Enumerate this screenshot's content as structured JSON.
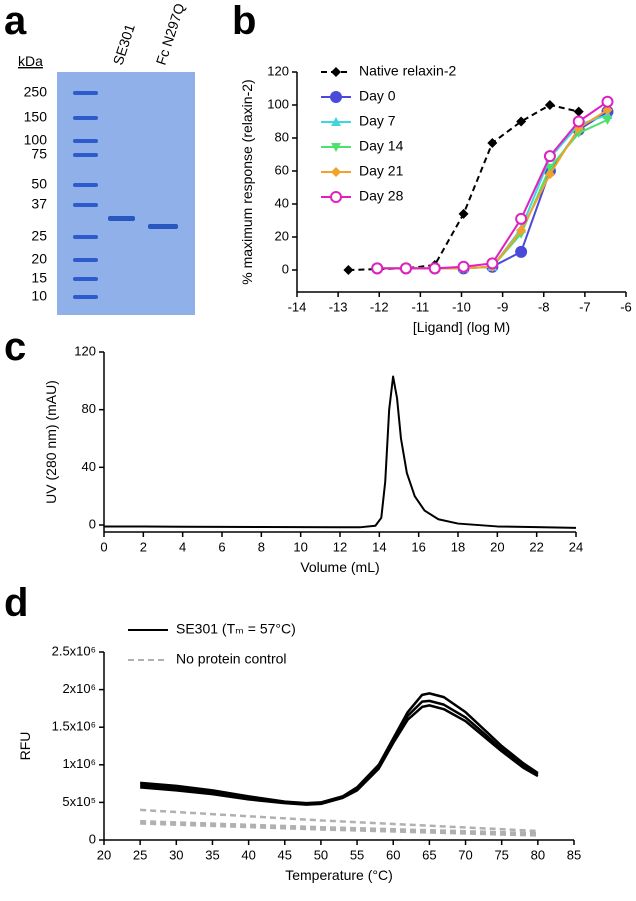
{
  "gel": {
    "panel_label": "a",
    "unit_label": "kDa",
    "ladder": [
      250,
      150,
      100,
      75,
      50,
      37,
      25,
      20,
      15,
      10
    ],
    "lanes": [
      "SE301",
      "Fc N297Q"
    ]
  },
  "chart_data": [
    {
      "panel_label": "b",
      "type": "line",
      "x_label": "[Ligand] (log M)",
      "y_label": "% maximum response (relaxin-2)",
      "xlim": [
        -14,
        -6
      ],
      "xticks": [
        -14,
        -13,
        -12,
        -11,
        -10,
        -9,
        -8,
        -7,
        -6
      ],
      "ylim": [
        0,
        120
      ],
      "yticks": [
        0,
        20,
        40,
        60,
        80,
        100,
        120
      ],
      "legend": "upper left",
      "series": [
        {
          "name": "Native relaxin-2",
          "color": "#000000",
          "marker": "diamond",
          "dash": true,
          "x": [
            -12.75,
            -11.35,
            -10.65,
            -9.95,
            -9.25,
            -8.55,
            -7.85,
            -7.15
          ],
          "values": [
            0,
            1,
            3,
            34,
            77,
            90,
            100,
            96
          ]
        },
        {
          "name": "Day 0",
          "color": "#4a4ad8",
          "marker": "circle",
          "dash": false,
          "x": [
            -12.05,
            -11.35,
            -10.65,
            -9.95,
            -9.25,
            -8.55,
            -7.85,
            -7.15,
            -6.45
          ],
          "values": [
            1,
            1,
            1,
            1,
            2,
            11,
            60,
            85,
            96
          ]
        },
        {
          "name": "Day 7",
          "color": "#3fd6e0",
          "marker": "triangle-up",
          "dash": false,
          "x": [
            -12.05,
            -11.35,
            -10.65,
            -9.95,
            -9.25,
            -8.55,
            -7.85,
            -7.15,
            -6.45
          ],
          "values": [
            1,
            1,
            1,
            1,
            2,
            25,
            68,
            88,
            94
          ]
        },
        {
          "name": "Day 14",
          "color": "#4ee06a",
          "marker": "triangle-down",
          "dash": false,
          "x": [
            -12.05,
            -11.35,
            -10.65,
            -9.95,
            -9.25,
            -8.55,
            -7.85,
            -7.15,
            -6.45
          ],
          "values": [
            1,
            1,
            1,
            1,
            2,
            22,
            62,
            83,
            91
          ]
        },
        {
          "name": "Day 21",
          "color": "#f2a22a",
          "marker": "diamond",
          "dash": false,
          "x": [
            -12.05,
            -11.35,
            -10.65,
            -9.95,
            -9.25,
            -8.55,
            -7.85,
            -7.15,
            -6.45
          ],
          "values": [
            1,
            1,
            1,
            1,
            2,
            24,
            58,
            86,
            97
          ]
        },
        {
          "name": "Day 28",
          "color": "#e020c0",
          "marker": "open-circle",
          "dash": false,
          "x": [
            -12.05,
            -11.35,
            -10.65,
            -9.95,
            -9.25,
            -8.55,
            -7.85,
            -7.15,
            -6.45
          ],
          "values": [
            1,
            1,
            1,
            2,
            4,
            31,
            69,
            90,
            102
          ]
        }
      ]
    },
    {
      "panel_label": "c",
      "type": "line",
      "x_label": "Volume (mL)",
      "y_label": "UV (280 nm) (mAU)",
      "xlim": [
        0,
        24
      ],
      "xticks": [
        0,
        2,
        4,
        6,
        8,
        10,
        12,
        14,
        16,
        18,
        20,
        22,
        24
      ],
      "ylim": [
        0,
        120
      ],
      "yticks": [
        0,
        40,
        80,
        120
      ],
      "x": [
        0,
        2,
        4,
        6,
        8,
        10,
        12,
        13,
        13.8,
        14.1,
        14.3,
        14.5,
        14.7,
        14.9,
        15.1,
        15.4,
        15.8,
        16.3,
        17,
        18,
        20,
        22,
        24
      ],
      "series": [
        {
          "color": "#000000",
          "dash": false,
          "values": [
            -1,
            -1,
            -1.2,
            -1.3,
            -1.4,
            -1.5,
            -1.6,
            -1.6,
            -0.5,
            5,
            30,
            80,
            103,
            88,
            60,
            36,
            20,
            10,
            4,
            1,
            -1,
            -1.5,
            -2
          ]
        }
      ]
    },
    {
      "panel_label": "d",
      "type": "line",
      "x_label": "Temperature (°C)",
      "y_label": "RFU",
      "xlim": [
        20,
        85
      ],
      "xticks": [
        20,
        25,
        30,
        35,
        40,
        45,
        50,
        55,
        60,
        65,
        70,
        75,
        80,
        85
      ],
      "ylim": [
        0,
        2500000
      ],
      "yticks": [
        0,
        {
          "value": 500000,
          "label": "5x10⁵"
        },
        {
          "value": 1000000,
          "label": "1x10⁶"
        },
        {
          "value": 1500000,
          "label": "1.5x10⁶"
        },
        {
          "value": 2000000,
          "label": "2x10⁶"
        },
        {
          "value": 2500000,
          "label": "2.5x10⁶"
        }
      ],
      "legend": "upper left",
      "series": [
        {
          "name": "SE301 (Tₘ = 57°C)",
          "color": "#000000",
          "dash": false,
          "x": [
            25,
            30,
            35,
            40,
            45,
            48,
            50,
            53,
            55,
            58,
            60,
            62,
            64,
            65,
            67,
            70,
            73,
            75,
            78,
            80
          ],
          "replicates": [
            [
              760000,
              720000,
              660000,
              580000,
              510000,
              490000,
              500000,
              580000,
              700000,
              1000000,
              1350000,
              1700000,
              1930000,
              1950000,
              1900000,
              1700000,
              1430000,
              1250000,
              1020000,
              890000
            ],
            [
              730000,
              690000,
              630000,
              560000,
              500000,
              480000,
              490000,
              570000,
              680000,
              980000,
              1320000,
              1650000,
              1840000,
              1850000,
              1800000,
              1630000,
              1380000,
              1210000,
              990000,
              870000
            ],
            [
              700000,
              660000,
              610000,
              540000,
              490000,
              470000,
              480000,
              560000,
              660000,
              950000,
              1290000,
              1600000,
              1770000,
              1790000,
              1740000,
              1580000,
              1340000,
              1180000,
              960000,
              850000
            ]
          ]
        },
        {
          "name": "No protein control",
          "color": "#b0b0b0",
          "dash": true,
          "x": [
            25,
            50,
            80
          ],
          "replicates": [
            [
              400000,
              260000,
              120000
            ],
            [
              250000,
              170000,
              90000
            ],
            [
              220000,
              140000,
              60000
            ]
          ]
        }
      ]
    }
  ]
}
